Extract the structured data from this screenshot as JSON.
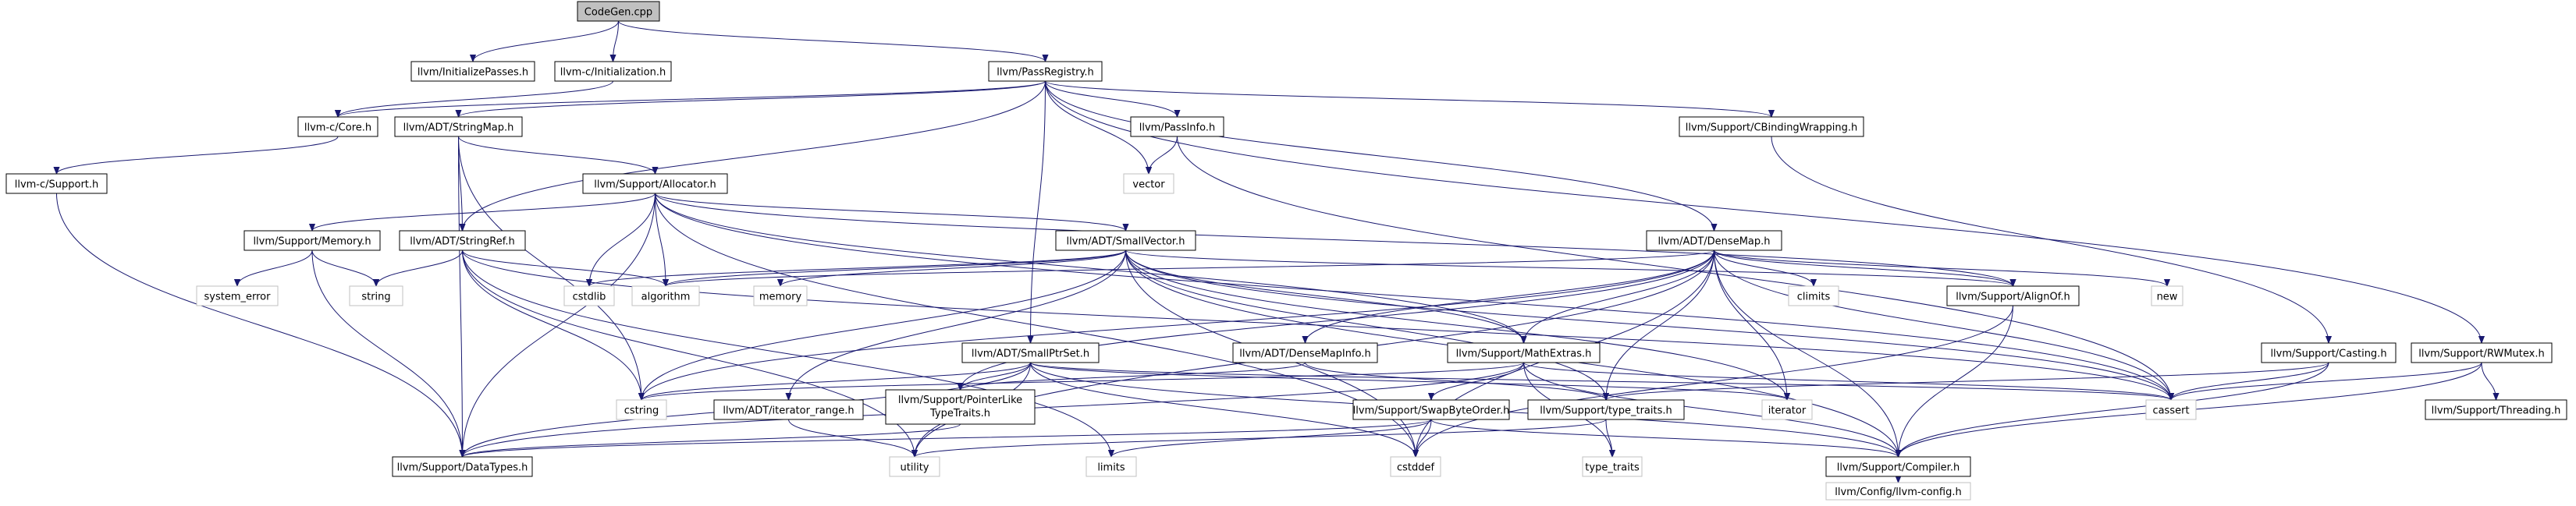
{
  "graph": {
    "nodes": [
      {
        "id": "codegen",
        "label": "CodeGen.cpp",
        "kind": "root"
      },
      {
        "id": "initpasses",
        "label": "llvm/InitializePasses.h",
        "kind": "file"
      },
      {
        "id": "cinit",
        "label": "llvm-c/Initialization.h",
        "kind": "file"
      },
      {
        "id": "passreg",
        "label": "llvm/PassRegistry.h",
        "kind": "file"
      },
      {
        "id": "ccore",
        "label": "llvm-c/Core.h",
        "kind": "file"
      },
      {
        "id": "stringmap",
        "label": "llvm/ADT/StringMap.h",
        "kind": "file"
      },
      {
        "id": "passinfo",
        "label": "llvm/PassInfo.h",
        "kind": "file"
      },
      {
        "id": "cbinding",
        "label": "llvm/Support/CBindingWrapping.h",
        "kind": "file"
      },
      {
        "id": "csupport",
        "label": "llvm-c/Support.h",
        "kind": "file"
      },
      {
        "id": "allocator",
        "label": "llvm/Support/Allocator.h",
        "kind": "file"
      },
      {
        "id": "vector",
        "label": "vector",
        "kind": "system"
      },
      {
        "id": "memory_h",
        "label": "llvm/Support/Memory.h",
        "kind": "file"
      },
      {
        "id": "stringref",
        "label": "llvm/ADT/StringRef.h",
        "kind": "file"
      },
      {
        "id": "smallvector",
        "label": "llvm/ADT/SmallVector.h",
        "kind": "file"
      },
      {
        "id": "densemap",
        "label": "llvm/ADT/DenseMap.h",
        "kind": "file"
      },
      {
        "id": "system_error",
        "label": "system_error",
        "kind": "system"
      },
      {
        "id": "string",
        "label": "string",
        "kind": "system"
      },
      {
        "id": "cstdlib",
        "label": "cstdlib",
        "kind": "system"
      },
      {
        "id": "algorithm",
        "label": "algorithm",
        "kind": "system"
      },
      {
        "id": "memory",
        "label": "memory",
        "kind": "system"
      },
      {
        "id": "climits",
        "label": "climits",
        "kind": "system"
      },
      {
        "id": "alignof",
        "label": "llvm/Support/AlignOf.h",
        "kind": "file"
      },
      {
        "id": "new",
        "label": "new",
        "kind": "system"
      },
      {
        "id": "smallptrset",
        "label": "llvm/ADT/SmallPtrSet.h",
        "kind": "file"
      },
      {
        "id": "densemapinfo",
        "label": "llvm/ADT/DenseMapInfo.h",
        "kind": "file"
      },
      {
        "id": "mathextras",
        "label": "llvm/Support/MathExtras.h",
        "kind": "file"
      },
      {
        "id": "casting",
        "label": "llvm/Support/Casting.h",
        "kind": "file"
      },
      {
        "id": "rwmutex",
        "label": "llvm/Support/RWMutex.h",
        "kind": "file"
      },
      {
        "id": "cstring",
        "label": "cstring",
        "kind": "system"
      },
      {
        "id": "iterrange",
        "label": "llvm/ADT/iterator_range.h",
        "kind": "file"
      },
      {
        "id": "ptrlike",
        "label": "llvm/Support/PointerLike TypeTraits.h",
        "kind": "file",
        "lines": [
          "llvm/Support/PointerLike",
          "TypeTraits.h"
        ]
      },
      {
        "id": "swapbyte",
        "label": "llvm/Support/SwapByteOrder.h",
        "kind": "file"
      },
      {
        "id": "typetraits",
        "label": "llvm/Support/type_traits.h",
        "kind": "file"
      },
      {
        "id": "iterator",
        "label": "iterator",
        "kind": "system"
      },
      {
        "id": "cassert",
        "label": "cassert",
        "kind": "system"
      },
      {
        "id": "threading",
        "label": "llvm/Support/Threading.h",
        "kind": "file"
      },
      {
        "id": "datatypes",
        "label": "llvm/Support/DataTypes.h",
        "kind": "file"
      },
      {
        "id": "utility",
        "label": "utility",
        "kind": "system"
      },
      {
        "id": "limits",
        "label": "limits",
        "kind": "system"
      },
      {
        "id": "cstddef",
        "label": "cstddef",
        "kind": "system"
      },
      {
        "id": "type_traits",
        "label": "type_traits",
        "kind": "system"
      },
      {
        "id": "compiler",
        "label": "llvm/Support/Compiler.h",
        "kind": "file"
      },
      {
        "id": "llvmconfig",
        "label": "llvm/Config/llvm-config.h",
        "kind": "system"
      }
    ],
    "edges": [
      [
        "codegen",
        "initpasses"
      ],
      [
        "codegen",
        "cinit"
      ],
      [
        "codegen",
        "passreg"
      ],
      [
        "cinit",
        "ccore"
      ],
      [
        "passreg",
        "ccore"
      ],
      [
        "passreg",
        "stringmap"
      ],
      [
        "passreg",
        "passinfo"
      ],
      [
        "passreg",
        "cbinding"
      ],
      [
        "passreg",
        "vector"
      ],
      [
        "passreg",
        "stringref"
      ],
      [
        "passreg",
        "smallptrset"
      ],
      [
        "passreg",
        "densemap"
      ],
      [
        "passreg",
        "rwmutex"
      ],
      [
        "ccore",
        "csupport"
      ],
      [
        "stringmap",
        "allocator"
      ],
      [
        "stringmap",
        "stringref"
      ],
      [
        "stringmap",
        "cstring"
      ],
      [
        "stringmap",
        "datatypes"
      ],
      [
        "passinfo",
        "vector"
      ],
      [
        "passinfo",
        "cassert"
      ],
      [
        "cbinding",
        "casting"
      ],
      [
        "csupport",
        "datatypes"
      ],
      [
        "allocator",
        "memory_h"
      ],
      [
        "allocator",
        "smallvector"
      ],
      [
        "allocator",
        "alignof"
      ],
      [
        "allocator",
        "mathextras"
      ],
      [
        "allocator",
        "cstdlib"
      ],
      [
        "allocator",
        "algorithm"
      ],
      [
        "allocator",
        "cstddef"
      ],
      [
        "allocator",
        "cassert"
      ],
      [
        "allocator",
        "datatypes"
      ],
      [
        "memory_h",
        "system_error"
      ],
      [
        "memory_h",
        "string"
      ],
      [
        "memory_h",
        "datatypes"
      ],
      [
        "stringref",
        "algorithm"
      ],
      [
        "stringref",
        "string"
      ],
      [
        "stringref",
        "cstring"
      ],
      [
        "stringref",
        "utility"
      ],
      [
        "stringref",
        "limits"
      ],
      [
        "stringref",
        "cassert"
      ],
      [
        "smallvector",
        "algorithm"
      ],
      [
        "smallvector",
        "memory"
      ],
      [
        "smallvector",
        "cstdlib"
      ],
      [
        "smallvector",
        "alignof"
      ],
      [
        "smallvector",
        "mathextras"
      ],
      [
        "smallvector",
        "typetraits"
      ],
      [
        "smallvector",
        "iterrange"
      ],
      [
        "smallvector",
        "iterator"
      ],
      [
        "smallvector",
        "cassert"
      ],
      [
        "smallvector",
        "cstring"
      ],
      [
        "smallvector",
        "cstddef"
      ],
      [
        "smallvector",
        "compiler"
      ],
      [
        "densemap",
        "algorithm"
      ],
      [
        "densemap",
        "climits"
      ],
      [
        "densemap",
        "alignof"
      ],
      [
        "densemap",
        "new"
      ],
      [
        "densemap",
        "densemapinfo"
      ],
      [
        "densemap",
        "mathextras"
      ],
      [
        "densemap",
        "ptrlike"
      ],
      [
        "densemap",
        "typetraits"
      ],
      [
        "densemap",
        "iterator"
      ],
      [
        "densemap",
        "cassert"
      ],
      [
        "densemap",
        "utility"
      ],
      [
        "densemap",
        "cstddef"
      ],
      [
        "densemap",
        "cstring"
      ],
      [
        "densemap",
        "compiler"
      ],
      [
        "smallptrset",
        "ptrlike"
      ],
      [
        "smallptrset",
        "compiler"
      ],
      [
        "smallptrset",
        "datatypes"
      ],
      [
        "smallptrset",
        "cstring"
      ],
      [
        "smallptrset",
        "iterator"
      ],
      [
        "smallptrset",
        "cassert"
      ],
      [
        "smallptrset",
        "cstddef"
      ],
      [
        "smallptrset",
        "utility"
      ],
      [
        "densemapinfo",
        "ptrlike"
      ],
      [
        "densemapinfo",
        "typetraits"
      ],
      [
        "mathextras",
        "swapbyte"
      ],
      [
        "mathextras",
        "compiler"
      ],
      [
        "mathextras",
        "cassert"
      ],
      [
        "mathextras",
        "cstring"
      ],
      [
        "mathextras",
        "type_traits"
      ],
      [
        "mathextras",
        "datatypes"
      ],
      [
        "alignof",
        "compiler"
      ],
      [
        "alignof",
        "cstddef"
      ],
      [
        "casting",
        "typetraits"
      ],
      [
        "casting",
        "compiler"
      ],
      [
        "casting",
        "cassert"
      ],
      [
        "rwmutex",
        "compiler"
      ],
      [
        "rwmutex",
        "threading"
      ],
      [
        "rwmutex",
        "cassert"
      ],
      [
        "iterrange",
        "utility"
      ],
      [
        "ptrlike",
        "datatypes"
      ],
      [
        "swapbyte",
        "compiler"
      ],
      [
        "swapbyte",
        "datatypes"
      ],
      [
        "swapbyte",
        "cstddef"
      ],
      [
        "swapbyte",
        "limits"
      ],
      [
        "typetraits",
        "type_traits"
      ],
      [
        "typetraits",
        "utility"
      ],
      [
        "compiler",
        "llvmconfig"
      ]
    ]
  }
}
